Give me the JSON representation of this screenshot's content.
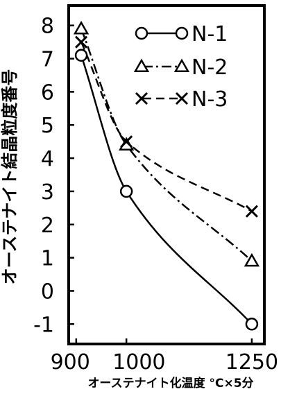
{
  "chart_data": {
    "type": "line",
    "ylabel": "オーステナイト結晶粒度番号",
    "xlabel": "オーステナイト化温度 °C×5分",
    "x_tick_labels": [
      "900",
      "1000",
      "1250"
    ],
    "x_ticks": [
      900,
      1000,
      1250
    ],
    "y_ticks": [
      -1,
      0,
      1,
      2,
      3,
      4,
      5,
      6,
      7,
      8
    ],
    "xlim": [
      885,
      1275
    ],
    "ylim": [
      -1.6,
      8.6
    ],
    "legend_position": "top-right",
    "grid": false,
    "series": [
      {
        "name": "N-1",
        "marker": "circle",
        "linestyle": "solid",
        "x": [
          910,
          1000,
          1250
        ],
        "y": [
          7.1,
          3.0,
          -1.0
        ]
      },
      {
        "name": "N-2",
        "marker": "triangle",
        "linestyle": "dashdot",
        "x": [
          910,
          1000,
          1250
        ],
        "y": [
          7.9,
          4.4,
          0.9
        ]
      },
      {
        "name": "N-3",
        "marker": "x",
        "linestyle": "dashed",
        "x": [
          910,
          1000,
          1250
        ],
        "y": [
          7.5,
          4.5,
          2.4
        ]
      }
    ]
  }
}
